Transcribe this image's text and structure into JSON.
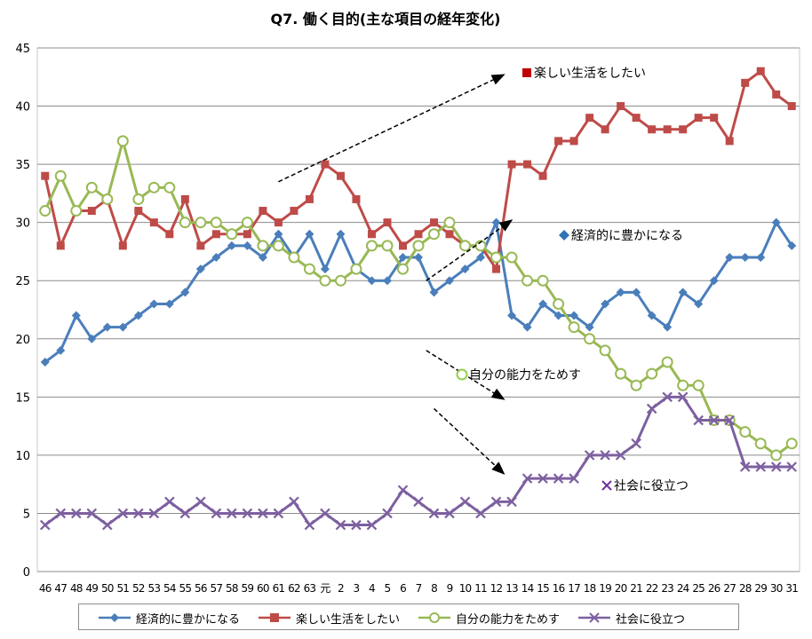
{
  "chart_data": {
    "type": "line",
    "title": "Q7. 働く目的(主な項目の経年変化)",
    "xlabel": "",
    "ylabel": "",
    "ylim": [
      0,
      45
    ],
    "yticks": [
      0,
      5,
      10,
      15,
      20,
      25,
      30,
      35,
      40,
      45
    ],
    "grid": true,
    "legend_position": "bottom",
    "categories": [
      "46",
      "47",
      "48",
      "49",
      "50",
      "51",
      "52",
      "53",
      "54",
      "55",
      "56",
      "57",
      "58",
      "59",
      "60",
      "61",
      "62",
      "63",
      "元",
      "2",
      "3",
      "4",
      "5",
      "6",
      "7",
      "8",
      "9",
      "10",
      "11",
      "12",
      "13",
      "14",
      "15",
      "16",
      "17",
      "18",
      "19",
      "20",
      "21",
      "22",
      "23",
      "24",
      "25",
      "26",
      "27",
      "28",
      "29",
      "30",
      "31"
    ],
    "series": [
      {
        "name": "経済的に豊かになる",
        "color": "#4a7ebb",
        "marker": "diamond",
        "values": [
          18,
          19,
          22,
          20,
          21,
          21,
          22,
          23,
          23,
          24,
          26,
          27,
          28,
          28,
          27,
          29,
          27,
          29,
          26,
          29,
          26,
          25,
          25,
          27,
          27,
          24,
          25,
          26,
          27,
          30,
          22,
          21,
          23,
          22,
          22,
          21,
          23,
          24,
          24,
          22,
          21,
          24,
          23,
          25,
          27,
          27,
          27,
          30,
          28
        ]
      },
      {
        "name": "楽しい生活をしたい",
        "color": "#be4b48",
        "marker": "square",
        "values": [
          34,
          28,
          31,
          31,
          32,
          28,
          31,
          30,
          29,
          32,
          28,
          29,
          29,
          29,
          31,
          30,
          31,
          32,
          35,
          34,
          32,
          29,
          30,
          28,
          29,
          30,
          29,
          28,
          28,
          26,
          35,
          35,
          34,
          37,
          37,
          39,
          38,
          40,
          39,
          38,
          38,
          38,
          39,
          39,
          37,
          42,
          43,
          41,
          40
        ]
      },
      {
        "name": "自分の能力をためす",
        "color": "#98b954",
        "marker": "circle",
        "values": [
          31,
          34,
          31,
          33,
          32,
          37,
          32,
          33,
          33,
          30,
          30,
          30,
          29,
          30,
          28,
          28,
          27,
          26,
          25,
          25,
          26,
          28,
          28,
          26,
          28,
          29,
          30,
          28,
          28,
          27,
          27,
          25,
          25,
          23,
          21,
          20,
          19,
          17,
          16,
          17,
          18,
          16,
          16,
          13,
          13,
          12,
          11,
          10,
          11
        ]
      },
      {
        "name": "社会に役立つ",
        "color": "#7d60a0",
        "marker": "x",
        "values": [
          4,
          5,
          5,
          5,
          4,
          5,
          5,
          5,
          6,
          5,
          6,
          5,
          5,
          5,
          5,
          5,
          6,
          4,
          5,
          4,
          4,
          4,
          5,
          7,
          6,
          5,
          5,
          6,
          5,
          6,
          6,
          8,
          8,
          8,
          8,
          10,
          10,
          10,
          11,
          14,
          15,
          15,
          13,
          13,
          13,
          9,
          9,
          9,
          9
        ]
      }
    ],
    "annotations": [
      {
        "text": "楽しい生活をしたい",
        "marker": "square",
        "color": "#c00000"
      },
      {
        "text": "経済的に豊かになる",
        "marker": "diamond",
        "color": "#2e75b6"
      },
      {
        "text": "自分の能力をためす",
        "marker": "circle",
        "color": "#92d050"
      },
      {
        "text": "社会に役立つ",
        "marker": "x",
        "color": "#7030a0"
      }
    ],
    "trend_arrows": [
      {
        "series": "楽しい生活をしたい",
        "from": [
          15,
          33.5
        ],
        "to": [
          29.5,
          42.7
        ]
      },
      {
        "series": "経済的に豊かになる",
        "from": [
          24.5,
          25
        ],
        "to": [
          30,
          30.2
        ]
      },
      {
        "series": "自分の能力をためす",
        "from": [
          24.5,
          19
        ],
        "to": [
          29.5,
          14.8
        ]
      },
      {
        "series": "社会に役立つ",
        "from": [
          25,
          14
        ],
        "to": [
          29.5,
          8.4
        ]
      }
    ]
  }
}
